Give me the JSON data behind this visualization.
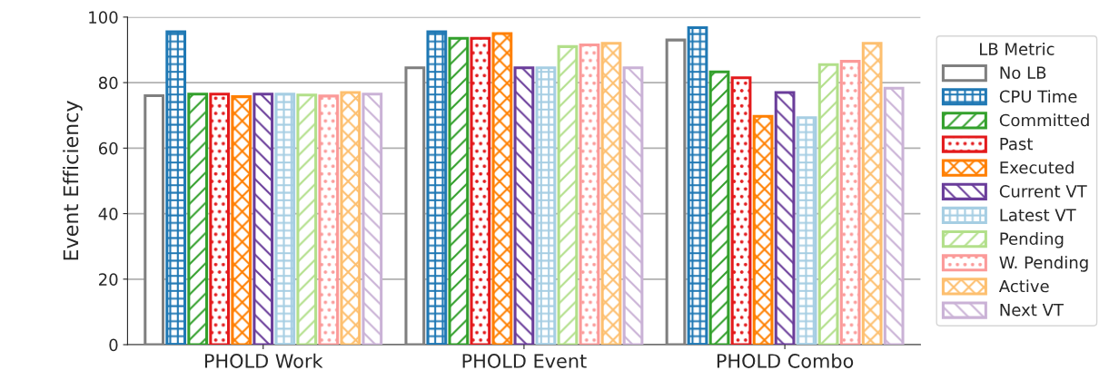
{
  "chart_data": {
    "type": "bar",
    "ylabel": "Event Efficiency",
    "legend_title": "LB Metric",
    "categories": [
      "PHOLD Work",
      "PHOLD Event",
      "PHOLD Combo"
    ],
    "series": [
      {
        "name": "No LB",
        "color": "#7f7f7f",
        "values": [
          76,
          84.5,
          93
        ]
      },
      {
        "name": "CPU Time",
        "color": "#1f78b4",
        "values": [
          95.5,
          95.5,
          96.8
        ]
      },
      {
        "name": "Committed",
        "color": "#33a02c",
        "values": [
          76.5,
          93.5,
          83.3
        ]
      },
      {
        "name": "Past",
        "color": "#e31a1c",
        "values": [
          76.5,
          93.5,
          81.5
        ]
      },
      {
        "name": "Executed",
        "color": "#ff7f00",
        "values": [
          75.7,
          95,
          69.7
        ]
      },
      {
        "name": "Current VT",
        "color": "#6a3d9a",
        "values": [
          76.5,
          84.5,
          77
        ]
      },
      {
        "name": "Latest VT",
        "color": "#a6cee3",
        "values": [
          76.5,
          84.5,
          69.3
        ]
      },
      {
        "name": "Pending",
        "color": "#b2df8a",
        "values": [
          76.2,
          91,
          85.5
        ]
      },
      {
        "name": "W. Pending",
        "color": "#fb9a99",
        "values": [
          75.9,
          91.5,
          86.5
        ]
      },
      {
        "name": "Active",
        "color": "#fdbf6f",
        "values": [
          77,
          92,
          92
        ]
      },
      {
        "name": "Next VT",
        "color": "#cab2d6",
        "values": [
          76.5,
          84.5,
          78.3
        ]
      }
    ],
    "ylim": [
      0,
      100
    ],
    "yticks": [
      0,
      20,
      40,
      60,
      80,
      100
    ],
    "grid": "y",
    "legend": "right"
  }
}
